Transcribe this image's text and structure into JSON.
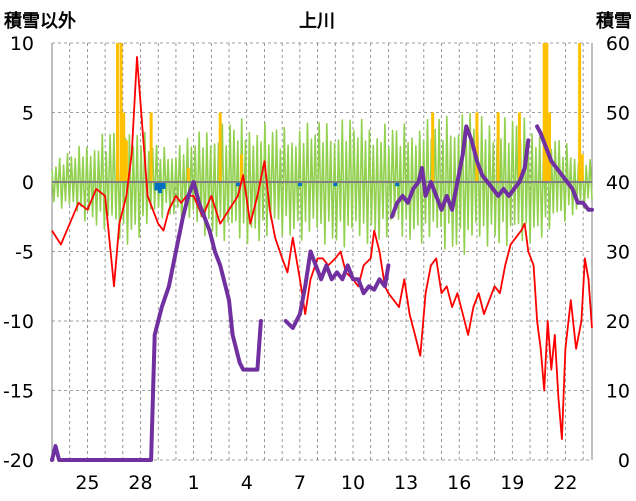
{
  "chart_data": {
    "type": "line",
    "title": "上川",
    "y_left_label": "積雪以外",
    "y_right_label": "積雪",
    "x_min": 23,
    "x_max": 53.5,
    "y_left_range": [
      -20,
      10
    ],
    "y_right_range": [
      0,
      60
    ],
    "y_left_ticks": [
      10,
      5,
      0,
      -5,
      -10,
      -15,
      -20
    ],
    "y_right_ticks": [
      60,
      50,
      40,
      30,
      20,
      10,
      0
    ],
    "x_tick_positions": [
      25,
      28,
      31,
      34,
      37,
      40,
      43,
      46,
      49,
      52
    ],
    "x_tick_labels": [
      "25",
      "28",
      "1",
      "4",
      "7",
      "10",
      "13",
      "16",
      "19",
      "22"
    ],
    "grid": true,
    "colors": {
      "temperature": "#ff0000",
      "snow_depth": "#7030a0",
      "sunshine": "#ffc000",
      "wind": "#92d050",
      "precipitation": "#0070c0",
      "zero_line": "#808080"
    },
    "series": [
      {
        "key": "temperature",
        "axis": "left",
        "points": [
          [
            23.0,
            -3.5
          ],
          [
            23.5,
            -4.5
          ],
          [
            24.0,
            -3.0
          ],
          [
            24.5,
            -1.5
          ],
          [
            25.0,
            -2.0
          ],
          [
            25.5,
            -0.5
          ],
          [
            26.0,
            -1.0
          ],
          [
            26.5,
            -7.5
          ],
          [
            26.8,
            -3.0
          ],
          [
            27.2,
            -1.0
          ],
          [
            27.5,
            2.0
          ],
          [
            27.8,
            9.0
          ],
          [
            28.1,
            4.0
          ],
          [
            28.4,
            -1.0
          ],
          [
            28.7,
            -2.0
          ],
          [
            29.0,
            -3.0
          ],
          [
            29.3,
            -3.5
          ],
          [
            29.6,
            -2.0
          ],
          [
            30.0,
            -1.0
          ],
          [
            30.3,
            -1.5
          ],
          [
            30.6,
            -1.0
          ],
          [
            31.0,
            -1.0
          ],
          [
            31.5,
            -2.5
          ],
          [
            32.0,
            -1.0
          ],
          [
            32.5,
            -3.0
          ],
          [
            33.0,
            -2.0
          ],
          [
            33.5,
            -1.0
          ],
          [
            33.8,
            0.5
          ],
          [
            34.2,
            -3.0
          ],
          [
            34.6,
            -1.0
          ],
          [
            35.0,
            1.5
          ],
          [
            35.3,
            -2.0
          ],
          [
            35.6,
            -4.0
          ],
          [
            36.0,
            -5.5
          ],
          [
            36.3,
            -6.5
          ],
          [
            36.6,
            -4.0
          ],
          [
            37.0,
            -7.0
          ],
          [
            37.3,
            -9.5
          ],
          [
            37.6,
            -7.0
          ],
          [
            38.0,
            -5.5
          ],
          [
            38.3,
            -5.5
          ],
          [
            38.6,
            -6.0
          ],
          [
            39.0,
            -5.5
          ],
          [
            39.3,
            -5.0
          ],
          [
            39.6,
            -6.5
          ],
          [
            40.0,
            -7.0
          ],
          [
            40.3,
            -7.5
          ],
          [
            40.6,
            -6.0
          ],
          [
            41.0,
            -5.5
          ],
          [
            41.2,
            -3.5
          ],
          [
            41.5,
            -5.0
          ],
          [
            41.8,
            -7.5
          ],
          [
            42.0,
            -8.0
          ],
          [
            42.3,
            -8.5
          ],
          [
            42.6,
            -9.0
          ],
          [
            42.9,
            -7.0
          ],
          [
            43.2,
            -9.5
          ],
          [
            43.5,
            -11.0
          ],
          [
            43.8,
            -12.5
          ],
          [
            44.1,
            -8.0
          ],
          [
            44.4,
            -6.0
          ],
          [
            44.7,
            -5.5
          ],
          [
            45.0,
            -8.0
          ],
          [
            45.3,
            -7.5
          ],
          [
            45.6,
            -9.0
          ],
          [
            45.9,
            -8.0
          ],
          [
            46.2,
            -9.5
          ],
          [
            46.5,
            -11.0
          ],
          [
            46.8,
            -9.0
          ],
          [
            47.1,
            -8.0
          ],
          [
            47.4,
            -9.5
          ],
          [
            47.7,
            -8.5
          ],
          [
            48.0,
            -7.5
          ],
          [
            48.3,
            -8.0
          ],
          [
            48.6,
            -6.0
          ],
          [
            48.9,
            -4.5
          ],
          [
            49.2,
            -4.0
          ],
          [
            49.5,
            -3.5
          ],
          [
            49.7,
            -3.0
          ],
          [
            49.9,
            -5.0
          ],
          [
            50.2,
            -6.0
          ],
          [
            50.4,
            -10.0
          ],
          [
            50.6,
            -12.0
          ],
          [
            50.8,
            -15.0
          ],
          [
            51.0,
            -10.0
          ],
          [
            51.2,
            -13.5
          ],
          [
            51.4,
            -11.0
          ],
          [
            51.6,
            -15.5
          ],
          [
            51.8,
            -18.5
          ],
          [
            52.0,
            -12.0
          ],
          [
            52.3,
            -8.5
          ],
          [
            52.6,
            -12.0
          ],
          [
            52.9,
            -10.0
          ],
          [
            53.1,
            -5.5
          ],
          [
            53.3,
            -7.0
          ],
          [
            53.5,
            -10.5
          ]
        ]
      },
      {
        "key": "snow_depth",
        "axis": "right",
        "segments": [
          [
            [
              23.0,
              0.0
            ],
            [
              23.2,
              2.0
            ],
            [
              23.4,
              0.0
            ],
            [
              24.0,
              0.0
            ],
            [
              25.0,
              0.0
            ],
            [
              26.0,
              0.0
            ],
            [
              27.0,
              0.0
            ],
            [
              28.0,
              0.0
            ],
            [
              28.6,
              0.0
            ],
            [
              28.8,
              18.0
            ],
            [
              29.2,
              22.0
            ],
            [
              29.6,
              25.0
            ],
            [
              30.0,
              30.0
            ],
            [
              30.4,
              35.0
            ],
            [
              30.7,
              38.0
            ],
            [
              31.0,
              40.0
            ],
            [
              31.3,
              37.0
            ],
            [
              31.6,
              35.0
            ],
            [
              31.9,
              33.0
            ],
            [
              32.2,
              30.0
            ],
            [
              32.5,
              28.0
            ],
            [
              32.8,
              25.0
            ],
            [
              33.0,
              23.0
            ],
            [
              33.2,
              18.0
            ],
            [
              33.6,
              14.0
            ],
            [
              33.8,
              13.0
            ],
            [
              34.2,
              13.0
            ],
            [
              34.6,
              13.0
            ],
            [
              34.8,
              20.0
            ]
          ],
          [
            [
              36.2,
              20.0
            ],
            [
              36.6,
              19.0
            ],
            [
              37.0,
              21.0
            ],
            [
              37.3,
              25.0
            ],
            [
              37.6,
              30.0
            ],
            [
              37.9,
              28.0
            ],
            [
              38.2,
              26.0
            ],
            [
              38.5,
              28.0
            ],
            [
              38.8,
              26.0
            ],
            [
              39.1,
              27.0
            ],
            [
              39.4,
              26.0
            ],
            [
              39.7,
              28.0
            ],
            [
              40.0,
              26.0
            ],
            [
              40.3,
              26.0
            ],
            [
              40.6,
              24.0
            ],
            [
              40.9,
              25.0
            ],
            [
              41.2,
              24.5
            ],
            [
              41.5,
              26.0
            ],
            [
              41.8,
              25.0
            ],
            [
              42.0,
              28.0
            ]
          ],
          [
            [
              42.2,
              35.0
            ],
            [
              42.5,
              37.0
            ],
            [
              42.8,
              38.0
            ],
            [
              43.1,
              37.0
            ],
            [
              43.4,
              39.0
            ],
            [
              43.7,
              40.0
            ],
            [
              43.9,
              42.0
            ],
            [
              44.1,
              38.0
            ],
            [
              44.4,
              40.0
            ],
            [
              44.7,
              38.0
            ],
            [
              45.0,
              36.0
            ],
            [
              45.3,
              38.0
            ],
            [
              45.6,
              36.0
            ],
            [
              45.9,
              40.0
            ],
            [
              46.2,
              44.0
            ],
            [
              46.4,
              48.0
            ],
            [
              46.7,
              46.0
            ],
            [
              47.0,
              43.0
            ],
            [
              47.3,
              41.0
            ],
            [
              47.6,
              40.0
            ],
            [
              47.9,
              39.0
            ],
            [
              48.2,
              38.0
            ],
            [
              48.5,
              39.0
            ],
            [
              48.8,
              38.0
            ],
            [
              49.1,
              39.0
            ],
            [
              49.4,
              40.0
            ],
            [
              49.7,
              42.0
            ],
            [
              49.9,
              46.0
            ]
          ],
          [
            [
              50.4,
              48.0
            ],
            [
              50.6,
              47.0
            ],
            [
              50.9,
              45.0
            ],
            [
              51.2,
              43.0
            ],
            [
              51.5,
              42.0
            ],
            [
              51.8,
              41.0
            ],
            [
              52.1,
              40.0
            ],
            [
              52.4,
              39.0
            ],
            [
              52.7,
              37.0
            ],
            [
              53.0,
              37.0
            ],
            [
              53.3,
              36.0
            ],
            [
              53.5,
              36.0
            ]
          ]
        ]
      },
      {
        "key": "wind",
        "axis": "left",
        "center": 0.0,
        "count": 280,
        "amplitudes": [
          1.6,
          2.2,
          2.8,
          3.4,
          4.0,
          5.0,
          4.2,
          3.0,
          2.6,
          3.2,
          3.8,
          4.4,
          4.6,
          4.8,
          4.6,
          4.4,
          4.2,
          4.4,
          4.6,
          4.8,
          5.0,
          4.8,
          4.6,
          4.4,
          4.4,
          4.6,
          4.8,
          5.2,
          5.6,
          5.2,
          4.8,
          5.0,
          5.0,
          4.6,
          4.0,
          3.2,
          2.4,
          1.6
        ]
      },
      {
        "key": "sunshine",
        "axis": "left",
        "bars": [
          [
            26.7,
            10.0
          ],
          [
            26.9,
            10.0
          ],
          [
            27.05,
            5.0
          ],
          [
            27.2,
            3.0
          ],
          [
            28.6,
            5.0
          ],
          [
            30.7,
            1.0
          ],
          [
            32.5,
            5.0
          ],
          [
            33.7,
            2.0
          ],
          [
            44.5,
            5.0
          ],
          [
            47.0,
            5.0
          ],
          [
            48.2,
            5.0
          ],
          [
            49.4,
            5.0
          ],
          [
            50.8,
            10.0
          ],
          [
            50.95,
            10.0
          ],
          [
            51.1,
            5.0
          ],
          [
            52.8,
            10.0
          ],
          [
            52.95,
            2.0
          ]
        ]
      },
      {
        "key": "precipitation",
        "axis": "left",
        "bars": [
          [
            28.9,
            -0.6
          ],
          [
            29.1,
            -0.8
          ],
          [
            29.3,
            -0.5
          ],
          [
            33.5,
            -0.3
          ],
          [
            37.0,
            -0.3
          ],
          [
            39.0,
            -0.3
          ],
          [
            42.5,
            -0.3
          ]
        ]
      }
    ]
  }
}
